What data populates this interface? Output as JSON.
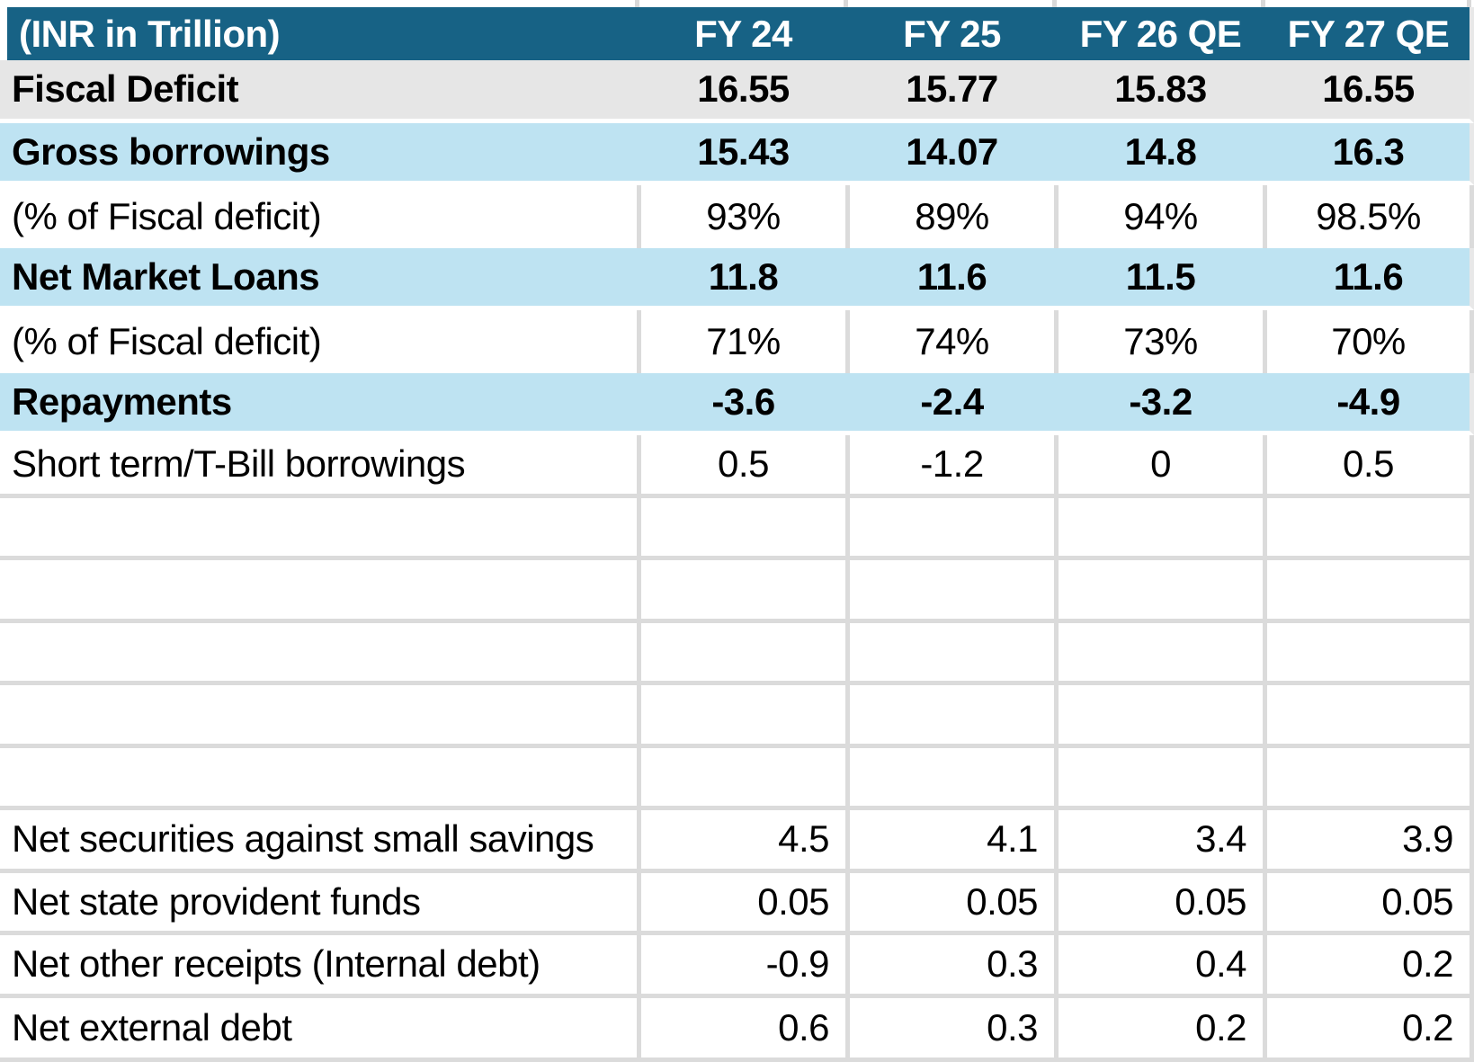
{
  "table": {
    "unit_label": "(INR in Trillion)",
    "columns": [
      "FY 24",
      "FY 25",
      "FY 26 QE",
      "FY 27 QE"
    ],
    "rows": [
      {
        "label": "Fiscal Deficit",
        "values": [
          "16.55",
          "15.77",
          "15.83",
          "16.55"
        ],
        "band": "gray",
        "bold": true,
        "align": "center",
        "rule_below": false
      },
      {
        "label": "Gross borrowings",
        "values": [
          "15.43",
          "14.07",
          "14.8",
          "16.3"
        ],
        "band": "blue",
        "bold": true,
        "align": "center",
        "rule_below": false
      },
      {
        "label": "(% of Fiscal deficit)",
        "values": [
          "93%",
          "89%",
          "94%",
          "98.5%"
        ],
        "band": "white",
        "bold": false,
        "align": "center",
        "rule_below": false
      },
      {
        "label": "Net Market Loans",
        "values": [
          "11.8",
          "11.6",
          "11.5",
          "11.6"
        ],
        "band": "blue",
        "bold": true,
        "align": "center",
        "rule_below": false
      },
      {
        "label": "(% of Fiscal deficit)",
        "values": [
          "71%",
          "74%",
          "73%",
          "70%"
        ],
        "band": "white",
        "bold": false,
        "align": "center",
        "rule_below": false
      },
      {
        "label": "Repayments",
        "values": [
          "-3.6",
          "-2.4",
          "-3.2",
          "-4.9"
        ],
        "band": "blue",
        "bold": true,
        "align": "center",
        "rule_below": false
      },
      {
        "label": "Short term/T-Bill borrowings",
        "values": [
          "0.5",
          "-1.2",
          "0",
          "0.5"
        ],
        "band": "white",
        "bold": false,
        "align": "center",
        "rule_below": true
      },
      {
        "label": "",
        "values": [
          "",
          "",
          "",
          ""
        ],
        "band": "white",
        "bold": false,
        "align": "center",
        "rule_below": true
      },
      {
        "label": "",
        "values": [
          "",
          "",
          "",
          ""
        ],
        "band": "white",
        "bold": false,
        "align": "center",
        "rule_below": true
      },
      {
        "label": "",
        "values": [
          "",
          "",
          "",
          ""
        ],
        "band": "white",
        "bold": false,
        "align": "center",
        "rule_below": true
      },
      {
        "label": "",
        "values": [
          "",
          "",
          "",
          ""
        ],
        "band": "white",
        "bold": false,
        "align": "center",
        "rule_below": true
      },
      {
        "label": "",
        "values": [
          "",
          "",
          "",
          ""
        ],
        "band": "white",
        "bold": false,
        "align": "center",
        "rule_below": true
      },
      {
        "label": "Net securities against small savings",
        "values": [
          "4.5",
          "4.1",
          "3.4",
          "3.9"
        ],
        "band": "white",
        "bold": false,
        "align": "right",
        "rule_below": true
      },
      {
        "label": "Net state provident funds",
        "values": [
          "0.05",
          "0.05",
          "0.05",
          "0.05"
        ],
        "band": "white",
        "bold": false,
        "align": "right",
        "rule_below": true
      },
      {
        "label": "Net other receipts (Internal debt)",
        "values": [
          "-0.9",
          "0.3",
          "0.4",
          "0.2"
        ],
        "band": "white",
        "bold": false,
        "align": "right",
        "rule_below": true
      },
      {
        "label": "Net external debt",
        "values": [
          "0.6",
          "0.3",
          "0.2",
          "0.2"
        ],
        "band": "white",
        "bold": false,
        "align": "right",
        "rule_below": true
      }
    ],
    "colors": {
      "header_bg": "#176285",
      "header_text": "#ffffff",
      "band_blue": "#bee3f2",
      "band_gray": "#e6e6e6",
      "gridline": "#dbdbdb",
      "text": "#000000"
    }
  },
  "chart_data": {
    "type": "table",
    "title": "(INR in Trillion)",
    "columns": [
      "FY 24",
      "FY 25",
      "FY 26 QE",
      "FY 27 QE"
    ],
    "rows": [
      {
        "label": "Fiscal Deficit",
        "values": [
          16.55,
          15.77,
          15.83,
          16.55
        ]
      },
      {
        "label": "Gross borrowings",
        "values": [
          15.43,
          14.07,
          14.8,
          16.3
        ]
      },
      {
        "label": "(% of Fiscal deficit)",
        "values": [
          "93%",
          "89%",
          "94%",
          "98.5%"
        ]
      },
      {
        "label": "Net Market Loans",
        "values": [
          11.8,
          11.6,
          11.5,
          11.6
        ]
      },
      {
        "label": "(% of Fiscal deficit)",
        "values": [
          "71%",
          "74%",
          "73%",
          "70%"
        ]
      },
      {
        "label": "Repayments",
        "values": [
          -3.6,
          -2.4,
          -3.2,
          -4.9
        ]
      },
      {
        "label": "Short term/T-Bill borrowings",
        "values": [
          0.5,
          -1.2,
          0,
          0.5
        ]
      },
      {
        "label": "Net securities against small savings",
        "values": [
          4.5,
          4.1,
          3.4,
          3.9
        ]
      },
      {
        "label": "Net state provident funds",
        "values": [
          0.05,
          0.05,
          0.05,
          0.05
        ]
      },
      {
        "label": "Net other receipts (Internal debt)",
        "values": [
          -0.9,
          0.3,
          0.4,
          0.2
        ]
      },
      {
        "label": "Net external debt",
        "values": [
          0.6,
          0.3,
          0.2,
          0.2
        ]
      }
    ]
  }
}
